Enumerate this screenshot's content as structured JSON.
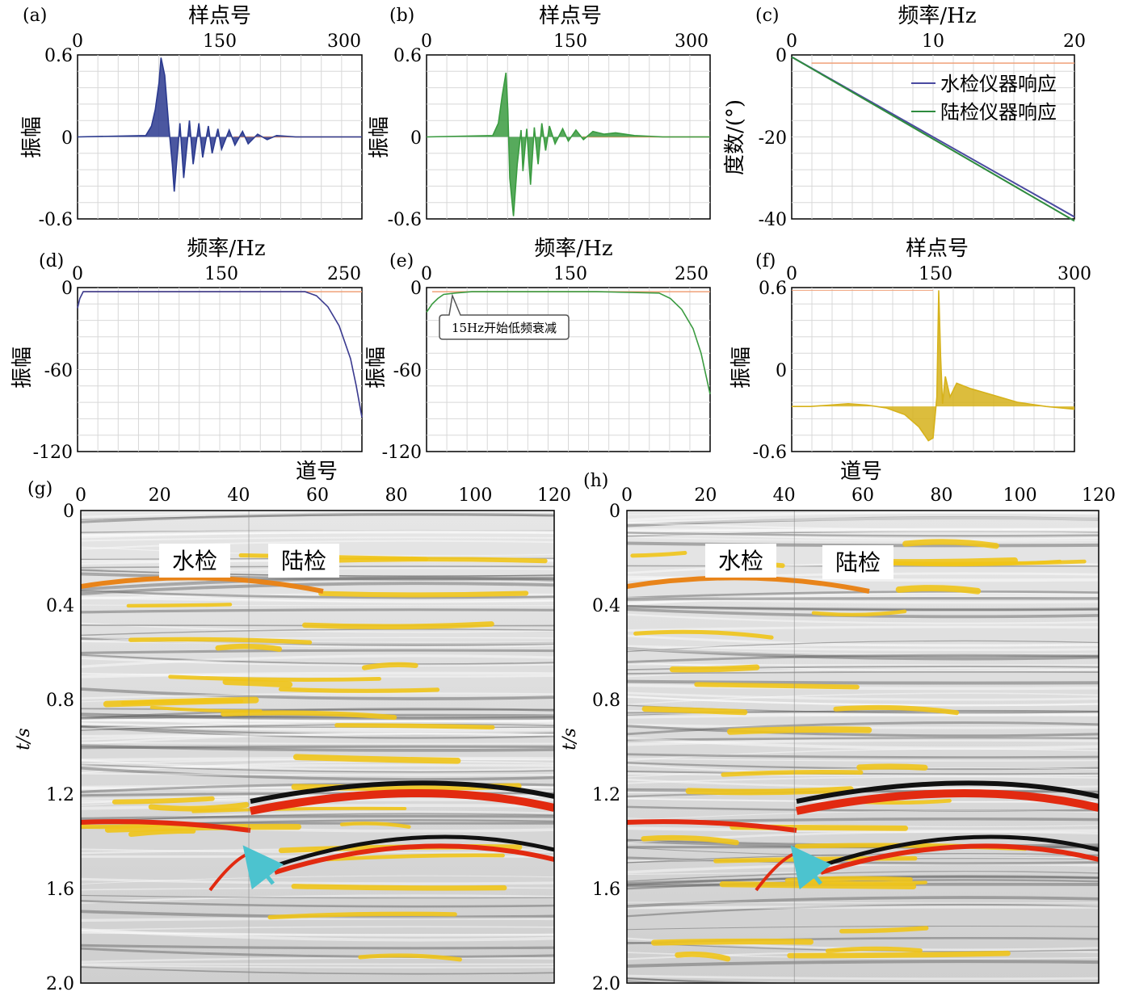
{
  "panels": [
    {
      "id": "a",
      "label": "(a)",
      "kind": "trace",
      "color": "#2b3a8f",
      "title": "样点号",
      "xticks": [
        "0",
        "150",
        "300"
      ],
      "xrange": [
        0,
        300
      ],
      "yticks": [
        "0.6",
        "0",
        "-0.6"
      ],
      "yrange": [
        -0.6,
        0.6
      ],
      "ylabel": "振幅",
      "chart_data": {
        "type": "line",
        "x": [
          0,
          72,
          78,
          82,
          86,
          88,
          92,
          96,
          100,
          102,
          108,
          112,
          118,
          122,
          128,
          132,
          138,
          142,
          148,
          152,
          160,
          166,
          174,
          180,
          190,
          200,
          210,
          230,
          260,
          300
        ],
        "y": [
          0,
          0.01,
          0.08,
          0.2,
          0.4,
          0.58,
          0.45,
          0.1,
          -0.2,
          -0.4,
          0.1,
          -0.3,
          0.12,
          -0.2,
          0.1,
          -0.15,
          0.08,
          -0.12,
          0.06,
          -0.09,
          0.05,
          -0.06,
          0.04,
          -0.05,
          0.02,
          -0.02,
          0.01,
          0,
          0,
          0
        ],
        "ylim": [
          -0.6,
          0.6
        ],
        "xlim": [
          0,
          300
        ]
      }
    },
    {
      "id": "b",
      "label": "(b)",
      "kind": "trace",
      "color": "#3a9b40",
      "title": "样点号",
      "xticks": [
        "0",
        "150",
        "300"
      ],
      "xrange": [
        0,
        300
      ],
      "yticks": [
        "0.6",
        "0",
        "-0.6"
      ],
      "yrange": [
        -0.6,
        0.6
      ],
      "ylabel": "振幅",
      "chart_data": {
        "type": "line",
        "x": [
          0,
          70,
          76,
          80,
          84,
          86,
          88,
          92,
          96,
          100,
          102,
          106,
          110,
          114,
          118,
          122,
          126,
          130,
          136,
          144,
          150,
          158,
          166,
          176,
          188,
          200,
          220,
          250,
          300
        ],
        "y": [
          0,
          0.01,
          0.1,
          0.3,
          0.47,
          0.2,
          -0.3,
          -0.58,
          -0.2,
          0.05,
          -0.25,
          0.06,
          -0.35,
          0.07,
          -0.2,
          0.1,
          -0.1,
          0.08,
          -0.05,
          0.06,
          -0.03,
          0.05,
          -0.02,
          0.04,
          0.02,
          0.03,
          0.01,
          0,
          0
        ],
        "ylim": [
          -0.6,
          0.6
        ],
        "xlim": [
          0,
          300
        ]
      }
    },
    {
      "id": "c",
      "label": "(c)",
      "kind": "phase",
      "title": "频率/Hz",
      "xticks": [
        "0",
        "10",
        "20"
      ],
      "xrange": [
        0,
        20
      ],
      "yticks": [
        "0",
        "-20",
        "-40"
      ],
      "yrange": [
        -40,
        0
      ],
      "ylabel": "度数/(°)",
      "legend": [
        {
          "name": "水检仪器响应",
          "color": "#4a4aa0"
        },
        {
          "name": "陆检仪器响应",
          "color": "#2e8b3e"
        }
      ],
      "chart_data": {
        "type": "line",
        "x": [
          0,
          20
        ],
        "series": [
          {
            "name": "水检仪器响应",
            "values": [
              -0.5,
              -39.5
            ]
          },
          {
            "name": "陆检仪器响应",
            "values": [
              -0.5,
              -40.5
            ]
          }
        ],
        "ylim": [
          -40,
          0
        ],
        "xlim": [
          0,
          20
        ]
      }
    },
    {
      "id": "d",
      "label": "(d)",
      "kind": "amp",
      "color": "#3a3a8f",
      "title": "频率/Hz",
      "xticks": [
        "0",
        "150",
        "250"
      ],
      "xrange": [
        0,
        250
      ],
      "yticks": [
        "0",
        "-60",
        "-120"
      ],
      "yrange": [
        -120,
        0
      ],
      "ylabel": "振幅",
      "chart_data": {
        "type": "line",
        "x": [
          0,
          2,
          5,
          10,
          50,
          150,
          200,
          210,
          220,
          230,
          240,
          245,
          250
        ],
        "y": [
          -15,
          -8,
          -3,
          -3,
          -3,
          -3,
          -3,
          -6,
          -14,
          -28,
          -52,
          -72,
          -95
        ],
        "ylim": [
          -120,
          0
        ],
        "xlim": [
          0,
          250
        ]
      }
    },
    {
      "id": "e",
      "label": "(e)",
      "kind": "amp",
      "color": "#3a9b40",
      "title": "频率/Hz",
      "xticks": [
        "0",
        "150",
        "250"
      ],
      "xrange": [
        0,
        250
      ],
      "yticks": [
        "0",
        "-60",
        "-120"
      ],
      "yrange": [
        -120,
        0
      ],
      "ylabel": "振幅",
      "annotation": "15Hz开始低频衰减",
      "chart_data": {
        "type": "line",
        "x": [
          0,
          5,
          10,
          15,
          25,
          40,
          150,
          205,
          215,
          225,
          235,
          242,
          250
        ],
        "y": [
          -18,
          -12,
          -8,
          -5,
          -4,
          -3,
          -3,
          -4,
          -8,
          -16,
          -30,
          -48,
          -78
        ],
        "ylim": [
          -120,
          0
        ],
        "xlim": [
          0,
          250
        ]
      }
    },
    {
      "id": "f",
      "label": "(f)",
      "kind": "trace",
      "color": "#d6b21b",
      "title": "样点号",
      "xticks": [
        "0",
        "150",
        "300"
      ],
      "xrange": [
        0,
        300
      ],
      "yticks": [
        "0.6",
        "0",
        "-0.6"
      ],
      "yrange": [
        -0.6,
        0.6
      ],
      "ylabel": "振幅",
      "chart_data": {
        "type": "line",
        "x": [
          0,
          20,
          40,
          60,
          80,
          100,
          120,
          135,
          145,
          150,
          154,
          156,
          158,
          160,
          163,
          168,
          175,
          190,
          210,
          240,
          270,
          300
        ],
        "y": [
          -0.27,
          -0.27,
          -0.26,
          -0.25,
          -0.26,
          -0.28,
          -0.33,
          -0.42,
          -0.52,
          -0.5,
          -0.2,
          0.58,
          0.1,
          -0.25,
          -0.05,
          -0.2,
          -0.1,
          -0.14,
          -0.18,
          -0.24,
          -0.27,
          -0.29
        ],
        "ylim": [
          -0.6,
          0.6
        ],
        "xlim": [
          0,
          300
        ]
      }
    }
  ],
  "sections": [
    {
      "id": "g",
      "label": "(g)",
      "xlabel": "道号",
      "ylabel": "t/s",
      "xticks": [
        "0",
        "20",
        "40",
        "60",
        "80",
        "100",
        "120"
      ],
      "yticks": [
        "0",
        "0.4",
        "0.8",
        "1.2",
        "1.6",
        "2.0"
      ],
      "tags": [
        "水检",
        "陆检"
      ]
    },
    {
      "id": "h",
      "label": "(h)",
      "xlabel": "道号",
      "ylabel": "t/s",
      "xticks": [
        "0",
        "20",
        "40",
        "60",
        "80",
        "100",
        "120"
      ],
      "yticks": [
        "0",
        "0.4",
        "0.8",
        "1.2",
        "1.6",
        "2.0"
      ],
      "tags": [
        "水检",
        "陆检"
      ]
    }
  ],
  "colors": {
    "orange_ref": "#f0a078",
    "grid": "#d8d8d8",
    "arrow": "#4cc3cf",
    "seis_red": "#e22a10",
    "seis_yellow": "#f0c418"
  }
}
